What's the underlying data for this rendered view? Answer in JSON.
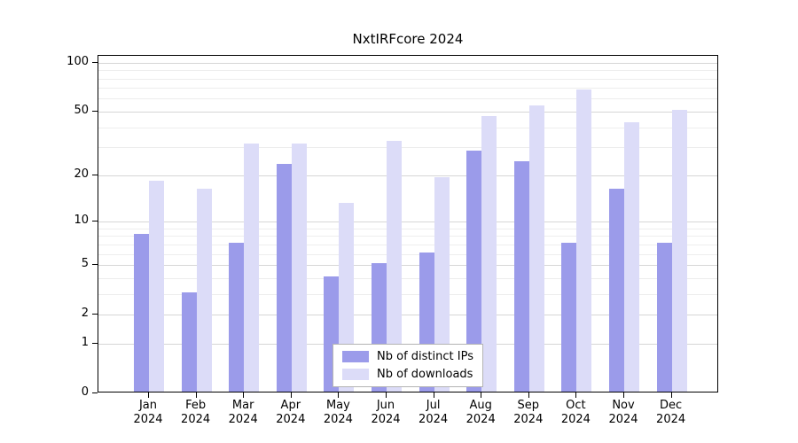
{
  "chart_data": {
    "type": "bar",
    "title": "NxtIRFcore 2024",
    "categories": [
      "Jan 2024",
      "Feb 2024",
      "Mar 2024",
      "Apr 2024",
      "May 2024",
      "Jun 2024",
      "Jul 2024",
      "Aug 2024",
      "Sep 2024",
      "Oct 2024",
      "Nov 2024",
      "Dec 2024"
    ],
    "series": [
      {
        "name": "Nb of distinct IPs",
        "color": "#9b9bea",
        "values": [
          8,
          3,
          7,
          23,
          4,
          5,
          6,
          28,
          24,
          7,
          16,
          7
        ]
      },
      {
        "name": "Nb of downloads",
        "color": "#dcdcf8",
        "values": [
          18,
          16,
          31,
          31,
          13,
          32,
          19,
          46,
          53,
          67,
          42,
          50
        ]
      }
    ],
    "y_scale": "log1p",
    "ylim": [
      0,
      110
    ],
    "y_ticks": [
      0,
      1,
      2,
      5,
      10,
      20,
      50,
      100
    ],
    "y_minor_ticks": [
      3,
      4,
      6,
      7,
      8,
      9,
      30,
      40,
      60,
      70,
      80,
      90
    ],
    "grid": "horizontal",
    "legend_position": "bottom-center",
    "xlabel": "",
    "ylabel": ""
  }
}
